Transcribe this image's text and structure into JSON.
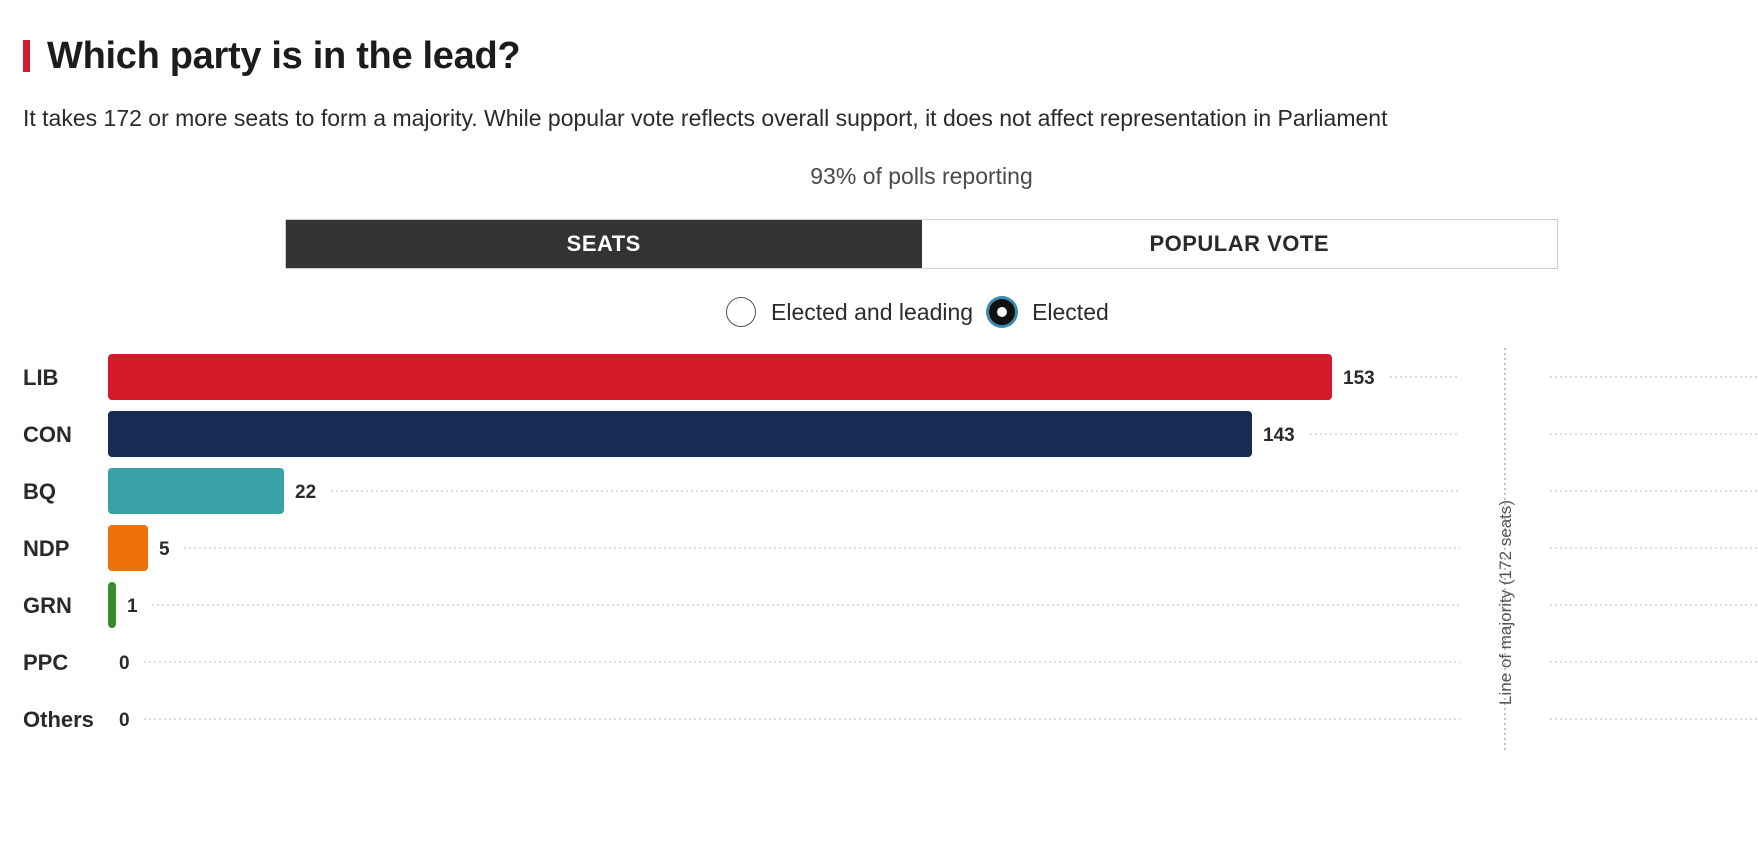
{
  "header": {
    "title": "Which party is in the lead?",
    "subtitle": "It takes 172 or more seats to form a majority. While popular vote reflects overall support, it does not affect representation in Parliament",
    "reporting": "93% of polls reporting"
  },
  "tabs": [
    {
      "label": "SEATS",
      "active": true
    },
    {
      "label": "POPULAR VOTE",
      "active": false
    }
  ],
  "radio": {
    "options": [
      {
        "label": "Elected and leading",
        "checked": false
      },
      {
        "label": "Elected",
        "checked": true
      }
    ]
  },
  "colors": {
    "accent": "#d7192c",
    "LIB": "#d7192c",
    "CON": "#172c52",
    "BQ": "#38a2a8",
    "NDP": "#ef7109",
    "GRN": "#3a8a2e",
    "PPC": "#6b4c9a",
    "Others": "#999999"
  },
  "chart_data": {
    "type": "bar",
    "orientation": "horizontal",
    "categories": [
      "LIB",
      "CON",
      "BQ",
      "NDP",
      "GRN",
      "PPC",
      "Others"
    ],
    "values": [
      153,
      143,
      22,
      5,
      1,
      0,
      0
    ],
    "xlim": [
      0,
      172
    ],
    "majority_line": {
      "value": 172,
      "label": "Line of majority (172 seats)"
    },
    "title": "Which party is in the lead?"
  }
}
